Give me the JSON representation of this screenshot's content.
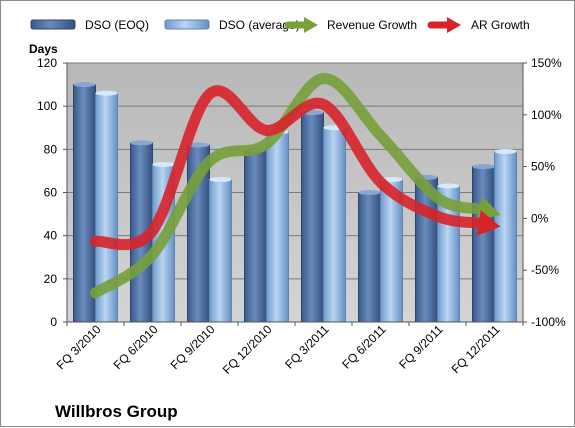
{
  "chart_data": {
    "type": "bar",
    "categories": [
      "FQ 3/2010",
      "FQ 6/2010",
      "FQ 9/2010",
      "FQ 12/2010",
      "FQ 3/2011",
      "FQ 6/2011",
      "FQ 9/2011",
      "FQ 12/2011"
    ],
    "series": [
      {
        "name": "DSO (EOQ)",
        "kind": "bar",
        "axis": "left",
        "color": "#4f6fa0",
        "values": [
          110,
          83,
          82,
          80,
          97,
          60,
          67,
          72
        ]
      },
      {
        "name": "DSO (average)",
        "kind": "bar",
        "axis": "left",
        "color": "#8cb4e2",
        "values": [
          106,
          73,
          66,
          88,
          90,
          66,
          63,
          79
        ]
      },
      {
        "name": "Revenue Growth",
        "kind": "line",
        "axis": "right",
        "color": "#77a03a",
        "values": [
          -0.72,
          -0.35,
          0.55,
          0.72,
          1.35,
          0.8,
          0.2,
          0.05
        ]
      },
      {
        "name": "AR Growth",
        "kind": "line",
        "axis": "right",
        "color": "#d7232a",
        "values": [
          -0.22,
          -0.12,
          1.2,
          0.85,
          1.1,
          0.35,
          0.02,
          -0.07
        ]
      }
    ],
    "ylabel": "Days",
    "ylim": [
      0,
      120
    ],
    "yticks": [
      0,
      20,
      40,
      60,
      80,
      100,
      120
    ],
    "y2lim": [
      -1,
      1.5
    ],
    "y2ticks": [
      -1,
      -0.5,
      0,
      0.5,
      1,
      1.5
    ],
    "y2tick_labels": [
      "-100%",
      "-50%",
      "0%",
      "50%",
      "100%",
      "150%"
    ],
    "grid": true,
    "legend": "top",
    "plot_background": "#c0c0c0",
    "company": "Willbros Group"
  }
}
